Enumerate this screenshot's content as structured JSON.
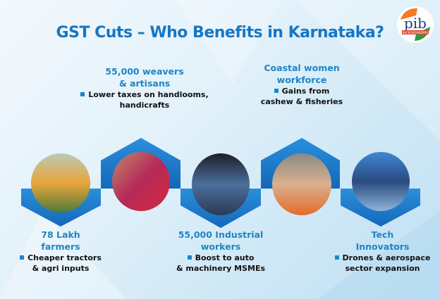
{
  "title": "GST Cuts – Who Benefits in Karnataka?",
  "logo": {
    "text": "pib",
    "subtext": "BACKGROUNDERS",
    "icon": "pib-logo"
  },
  "colors": {
    "accent": "#1677c4",
    "hexagon": "#1a7fd0",
    "heading": "#1d86c6"
  },
  "groups": [
    {
      "head1": "78 Lakh",
      "head2": "farmers",
      "desc1": "Cheaper tractors",
      "desc2": "& agri inputs",
      "photo": "farmer"
    },
    {
      "head1": "55,000 weavers",
      "head2": "& artisans",
      "desc1": "Lower taxes on handlooms,",
      "desc2": "handicrafts",
      "photo": "weaving-hands"
    },
    {
      "head1": "55,000 Industrial",
      "head2": "workers",
      "desc1": "Boost to auto",
      "desc2": "& machinery MSMEs",
      "photo": "industrial-workers"
    },
    {
      "head1": "Coastal women",
      "head2": "workforce",
      "desc1": "Gains from",
      "desc2": "cashew & fisheries",
      "photo": "woman-worker"
    },
    {
      "head1": "Tech",
      "head2": "Innovators",
      "desc1": "Drones & aerospace",
      "desc2": "sector expansion",
      "photo": "tech-innovators"
    }
  ]
}
